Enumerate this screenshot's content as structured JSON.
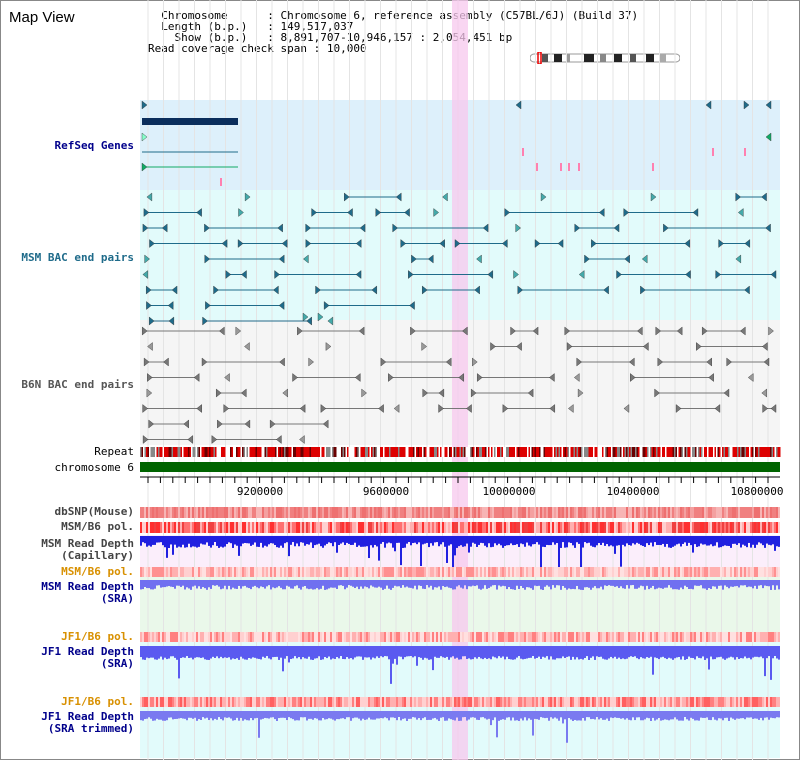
{
  "title": "Map View",
  "info": {
    "chromosome_key": "Chromosome",
    "chromosome_value": "Chromosome 6, reference assembly (C57BL/6J) (Build 37)",
    "length_key": "Length (b.p.)",
    "length_value": "149,517,037",
    "show_key": "Show (b.p.)",
    "show_value": "8,891,707-10,946,157 : 2,054,451 bp",
    "coverage_key": "Read coverage check span",
    "coverage_value": "10,000"
  },
  "tracks": {
    "refseq": "RefSeq Genes",
    "msm_bac": "MSM BAC end pairs",
    "b6n_bac": "B6N BAC end pairs",
    "repeat": "Repeat",
    "chromosome": "chromosome 6",
    "dbsnp": "dbSNP(Mouse)",
    "msm_b6_pol": "MSM/B6 pol.",
    "msm_depth_cap_1": "MSM Read Depth",
    "msm_depth_cap_2": "(Capillary)",
    "msm_b6_pol_2": "MSM/B6 pol.",
    "msm_depth_sra_1": "MSM Read Depth",
    "msm_depth_sra_2": "(SRA)",
    "jf1_b6_pol": "JF1/B6 pol.",
    "jf1_depth_sra_1": "JF1 Read Depth",
    "jf1_depth_sra_2": "(SRA)",
    "jf1_b6_pol_2": "JF1/B6 pol.",
    "jf1_depth_trim_1": "JF1 Read Depth",
    "jf1_depth_trim_2": "(SRA trimmed)"
  },
  "axis": {
    "ticks": [
      "9200000",
      "9600000",
      "10000000",
      "10400000",
      "10800000"
    ]
  },
  "colors": {
    "refseq_bg": "#ddf0fb",
    "msm_bac_bg": "#e2fbfb",
    "b6n_bac_bg": "#f4f4f4",
    "highlight": "#f7c8ee",
    "label_blue": "#00008b",
    "label_teal": "#1f6b8a",
    "label_orange": "#d89000",
    "chromosome_green": "#006400"
  }
}
